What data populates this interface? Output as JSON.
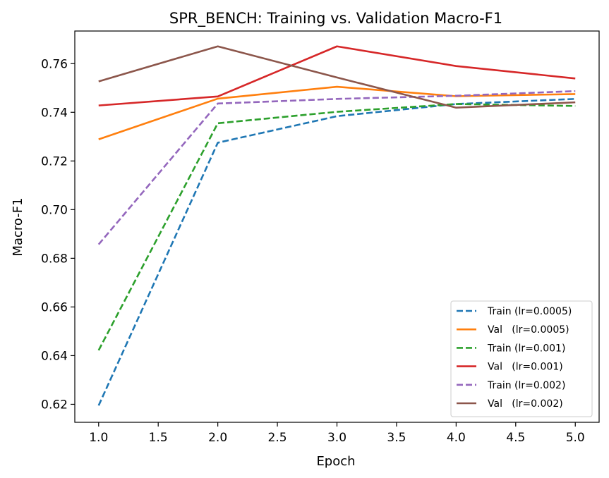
{
  "chart_data": {
    "type": "line",
    "title": "SPR_BENCH: Training vs. Validation Macro-F1",
    "xlabel": "Epoch",
    "ylabel": "Macro-F1",
    "x": [
      1,
      2,
      3,
      4,
      5
    ],
    "xlim": [
      0.8,
      5.2
    ],
    "ylim": [
      0.6126,
      0.7734
    ],
    "xticks": [
      1.0,
      1.5,
      2.0,
      2.5,
      3.0,
      3.5,
      4.0,
      4.5,
      5.0
    ],
    "xtick_labels": [
      "1.0",
      "1.5",
      "2.0",
      "2.5",
      "3.0",
      "3.5",
      "4.0",
      "4.5",
      "5.0"
    ],
    "yticks": [
      0.62,
      0.64,
      0.66,
      0.68,
      0.7,
      0.72,
      0.74,
      0.76
    ],
    "ytick_labels": [
      "0.62",
      "0.64",
      "0.66",
      "0.68",
      "0.70",
      "0.72",
      "0.74",
      "0.76"
    ],
    "grid": false,
    "legend_position": "bottom-right",
    "series": [
      {
        "name": "Train (lr=0.0005)",
        "color": "#1f77b4",
        "dash": "dashed",
        "values": [
          0.6195,
          0.7275,
          0.7384,
          0.7434,
          0.7455
        ]
      },
      {
        "name": "Val   (lr=0.0005)",
        "color": "#ff7f0e",
        "dash": "solid",
        "values": [
          0.7289,
          0.7456,
          0.7505,
          0.7466,
          0.7475
        ]
      },
      {
        "name": "Train (lr=0.001)",
        "color": "#2ca02c",
        "dash": "dashed",
        "values": [
          0.6422,
          0.7355,
          0.7402,
          0.7434,
          0.7426
        ]
      },
      {
        "name": "Val   (lr=0.001)",
        "color": "#d62728",
        "dash": "solid",
        "values": [
          0.7428,
          0.7465,
          0.7671,
          0.759,
          0.7539
        ]
      },
      {
        "name": "Train (lr=0.002)",
        "color": "#9467bd",
        "dash": "dashed",
        "values": [
          0.6857,
          0.7436,
          0.7455,
          0.7468,
          0.7487
        ]
      },
      {
        "name": "Val   (lr=0.002)",
        "color": "#8c564b",
        "dash": "solid",
        "values": [
          0.7527,
          0.7671,
          0.7543,
          0.7419,
          0.7441
        ]
      }
    ]
  }
}
